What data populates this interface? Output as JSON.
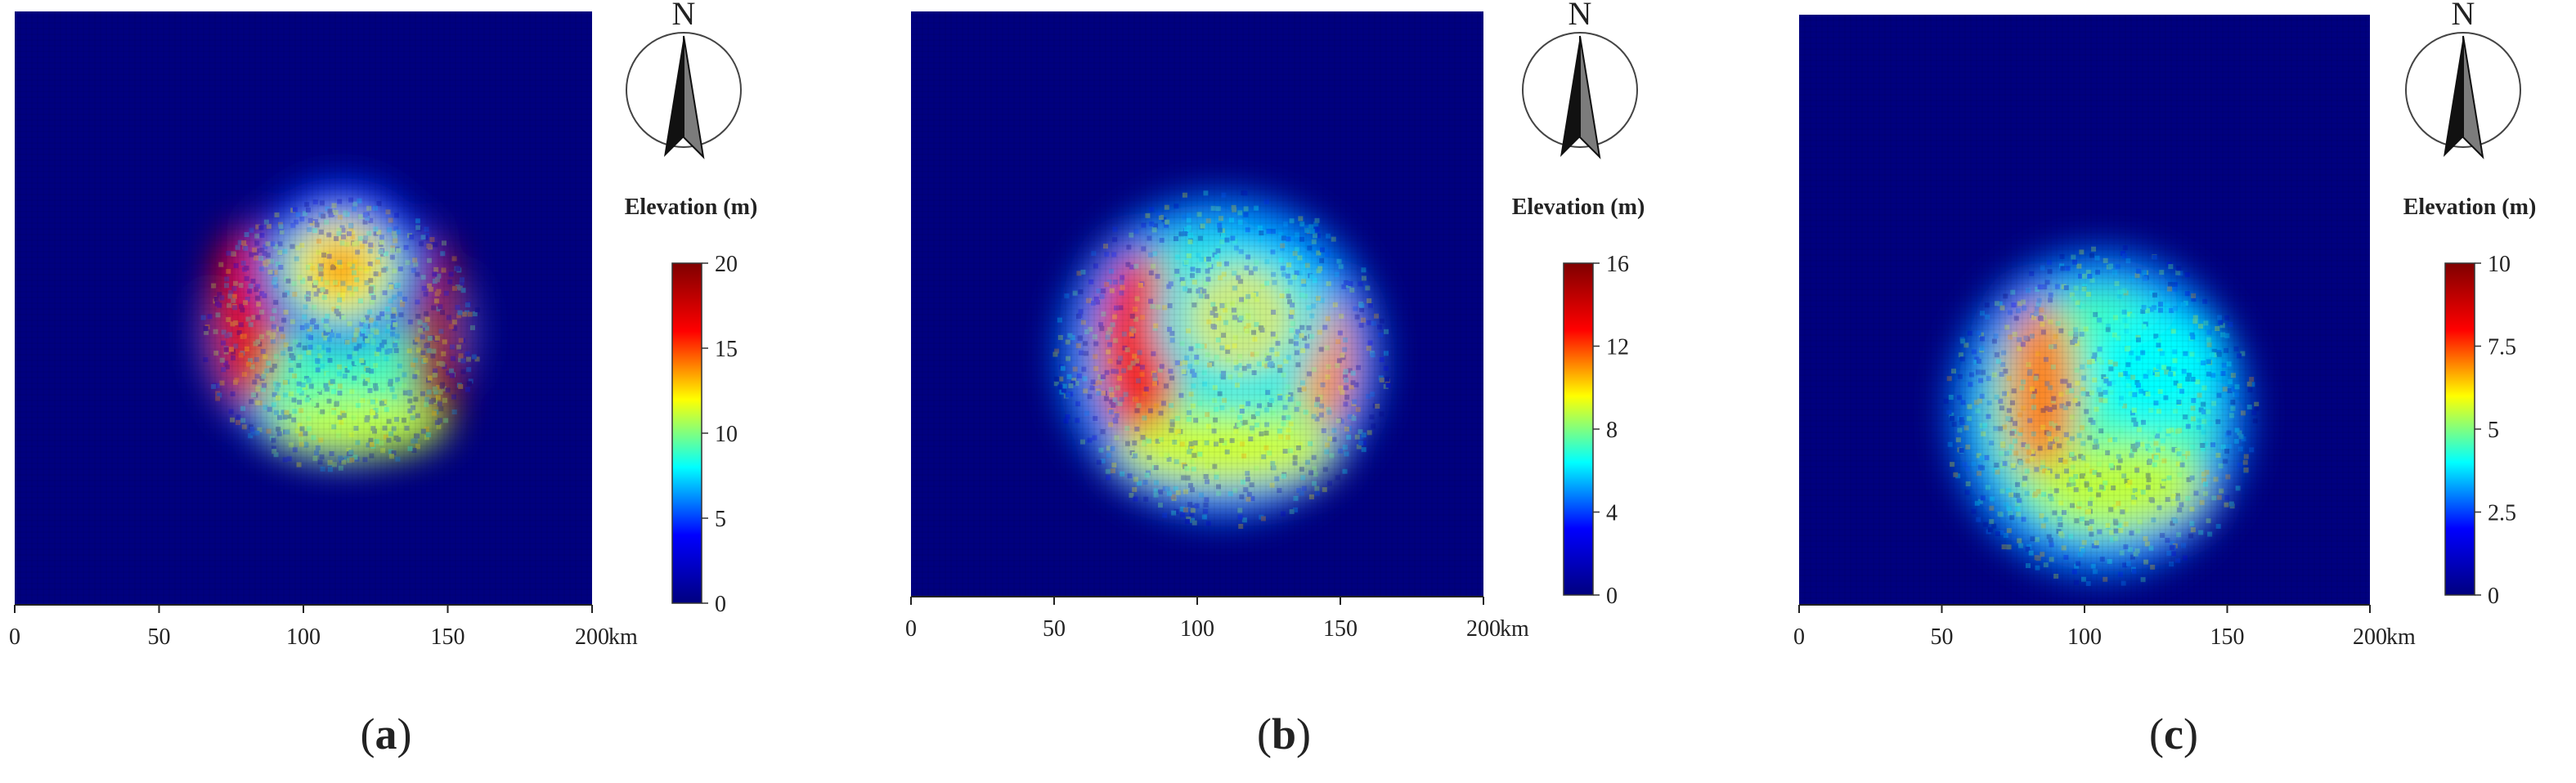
{
  "chart_data": [
    {
      "type": "heatmap",
      "panel_label": "a",
      "x_ticks": [
        0,
        50,
        100,
        150,
        200
      ],
      "x_unit": "km",
      "xlim": [
        0,
        200
      ],
      "colorbar": {
        "title": "Elevation (m)",
        "min": 0,
        "max": 20,
        "ticks": [
          "20",
          "15",
          "10",
          "5",
          "0"
        ]
      },
      "north_arrow": "N",
      "colormap": [
        "#00007f",
        "#0000ff",
        "#00ffff",
        "#ffff00",
        "#ff0000",
        "#7f0000"
      ],
      "features": {
        "spread": {
          "cx": 112,
          "cy": 108,
          "rx": 46,
          "ry": 44
        },
        "blobs": [
          {
            "cx": 80,
            "cy": 103,
            "rx": 12,
            "ry": 30,
            "value": 17
          },
          {
            "cx": 146,
            "cy": 110,
            "rx": 9,
            "ry": 34,
            "value": 19
          },
          {
            "cx": 113,
            "cy": 88,
            "rx": 10,
            "ry": 8,
            "value": 16
          },
          {
            "cx": 118,
            "cy": 140,
            "rx": 30,
            "ry": 10,
            "value": 11
          }
        ],
        "rings": [
          {
            "cx": 113,
            "cy": 86,
            "r": 25,
            "value": 5
          },
          {
            "cx": 113,
            "cy": 86,
            "r": 12,
            "value": 12
          }
        ]
      }
    },
    {
      "type": "heatmap",
      "panel_label": "b",
      "x_ticks": [
        0,
        50,
        100,
        150,
        200
      ],
      "x_unit": "km",
      "xlim": [
        0,
        200
      ],
      "colorbar": {
        "title": "Elevation (m)",
        "min": 0,
        "max": 16,
        "ticks": [
          "16",
          "12",
          "8",
          "4",
          "0"
        ]
      },
      "north_arrow": "N",
      "colormap": [
        "#00007f",
        "#0000ff",
        "#00ffff",
        "#ffff00",
        "#ff0000",
        "#7f0000"
      ],
      "features": {
        "spread": {
          "cx": 108,
          "cy": 118,
          "rx": 56,
          "ry": 55
        },
        "blobs": [
          {
            "cx": 80,
            "cy": 115,
            "rx": 14,
            "ry": 32,
            "value": 13
          },
          {
            "cx": 145,
            "cy": 120,
            "rx": 9,
            "ry": 22,
            "value": 11
          },
          {
            "cx": 110,
            "cy": 150,
            "rx": 38,
            "ry": 12,
            "value": 9
          }
        ],
        "rings": [
          {
            "cx": 115,
            "cy": 105,
            "r": 25,
            "value": 6
          },
          {
            "cx": 115,
            "cy": 105,
            "r": 12,
            "value": 10
          }
        ]
      }
    },
    {
      "type": "heatmap",
      "panel_label": "c",
      "x_ticks": [
        0,
        50,
        100,
        150,
        200
      ],
      "x_unit": "km",
      "xlim": [
        0,
        200
      ],
      "colorbar": {
        "title": "Elevation (m)",
        "min": 0,
        "max": 10,
        "ticks": [
          "10",
          "7.5",
          "5",
          "2.5",
          "0"
        ]
      },
      "north_arrow": "N",
      "colormap": [
        "#00007f",
        "#0000ff",
        "#00ffff",
        "#ffff00",
        "#ff0000",
        "#7f0000"
      ],
      "features": {
        "spread": {
          "cx": 105,
          "cy": 135,
          "rx": 52,
          "ry": 55
        },
        "blobs": [
          {
            "cx": 85,
            "cy": 128,
            "rx": 12,
            "ry": 30,
            "value": 7
          },
          {
            "cx": 112,
            "cy": 160,
            "rx": 30,
            "ry": 14,
            "value": 5.5
          },
          {
            "cx": 125,
            "cy": 120,
            "rx": 22,
            "ry": 20,
            "value": 4
          }
        ],
        "rings": []
      }
    }
  ],
  "captions": [
    {
      "open": "(",
      "letter": "a",
      "close": ")"
    },
    {
      "open": "(",
      "letter": "b",
      "close": ")"
    },
    {
      "open": "(",
      "letter": "c",
      "close": ")"
    }
  ]
}
